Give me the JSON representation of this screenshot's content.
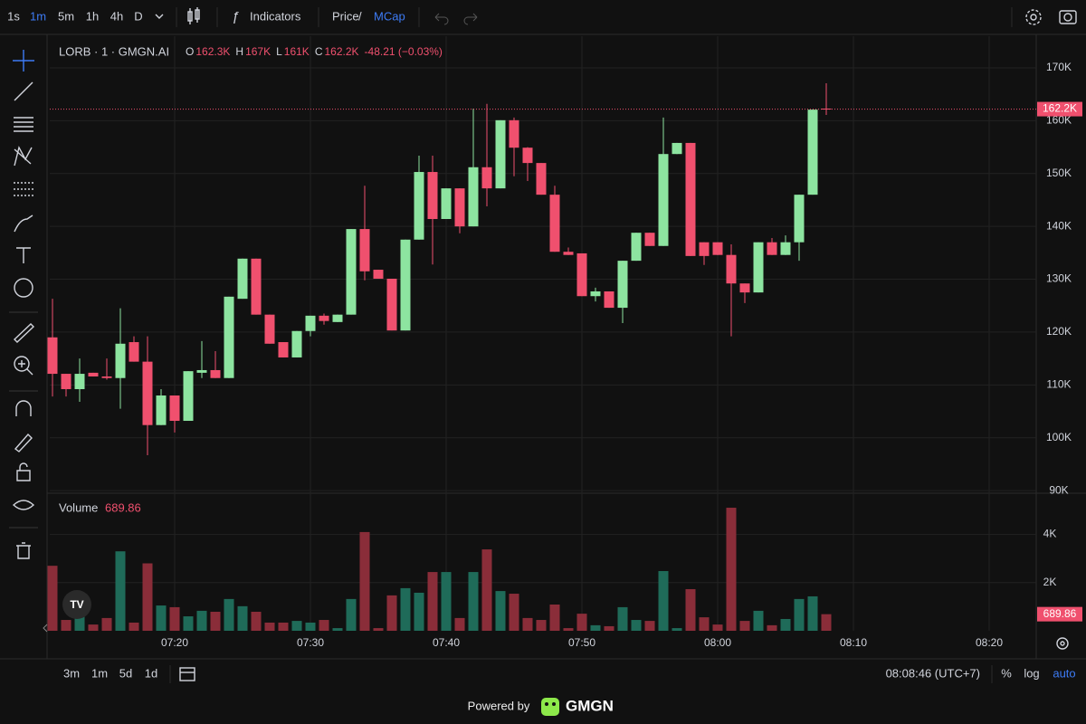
{
  "toolbar": {
    "intervals": [
      "1s",
      "1m",
      "5m",
      "1h",
      "4h",
      "D"
    ],
    "indicators": "Indicators",
    "price": "Price",
    "slash": "/",
    "mcap": "MCap"
  },
  "bottom_bar": {
    "ranges": [
      "3m",
      "1m",
      "5d",
      "1d"
    ],
    "clock": "08:08:46 (UTC+7)",
    "percent": "%",
    "log": "log",
    "auto": "auto"
  },
  "footer": {
    "powered": "Powered by",
    "brand": "GMGN"
  },
  "chart_data": {
    "type": "candlestick",
    "title": "LORB · 1 · GMGN.AI",
    "legend": [
      {
        "key": "O",
        "value": "162.3K"
      },
      {
        "key": "H",
        "value": "167K"
      },
      {
        "key": "L",
        "value": "161K"
      },
      {
        "key": "C",
        "value": "162.2K"
      }
    ],
    "change": "-48.21 (−0.03%)",
    "up_color": "#8de4a0",
    "down_color": "#f0506e",
    "categories": [
      null,
      null,
      null,
      null,
      null,
      null,
      null,
      null,
      null,
      "07:20",
      null,
      null,
      null,
      null,
      null,
      null,
      null,
      null,
      null,
      "07:30",
      null,
      null,
      null,
      null,
      null,
      null,
      null,
      null,
      null,
      "07:40",
      null,
      null,
      null,
      null,
      null,
      null,
      null,
      null,
      null,
      "07:50",
      null,
      null,
      null,
      null,
      null,
      null,
      null,
      null,
      null,
      "08:00",
      null,
      null,
      null,
      null,
      null,
      null,
      null,
      null,
      null,
      "08:10",
      null,
      null,
      null,
      null,
      null,
      null,
      null,
      null,
      null,
      "08:20",
      null,
      null
    ],
    "open": [
      119000,
      112100,
      109200,
      112300,
      111600,
      111300,
      118100,
      114400,
      102400,
      108000,
      103200,
      112300,
      112800,
      111300,
      126300,
      133900,
      123300,
      118100,
      115200,
      120200,
      123100,
      121900,
      123300,
      139500,
      131800,
      130100,
      120300,
      137500,
      150300,
      141400,
      147200,
      140000,
      151200,
      147200,
      160100,
      154900,
      152000,
      146000,
      135200,
      134900,
      126800,
      127700,
      124600,
      133500,
      138800,
      136300,
      153700,
      155800,
      137000,
      137000,
      134600,
      129200,
      127500,
      137000,
      134600,
      137000,
      146000,
      162300,
      null,
      null,
      null,
      null,
      null,
      null,
      null,
      null,
      null,
      null,
      null,
      null,
      null,
      null
    ],
    "high": [
      126300,
      112100,
      115000,
      112300,
      115000,
      124500,
      119200,
      119200,
      109200,
      108000,
      112600,
      118300,
      116400,
      126700,
      133900,
      133900,
      123300,
      118100,
      120200,
      123100,
      123500,
      123300,
      139500,
      147700,
      131800,
      130100,
      137500,
      153400,
      153400,
      147200,
      147200,
      162300,
      163200,
      160100,
      160600,
      155000,
      152000,
      147700,
      136000,
      134900,
      128400,
      127700,
      133500,
      138800,
      138800,
      160600,
      155800,
      155800,
      137000,
      137000,
      136600,
      129200,
      137000,
      137800,
      138300,
      146000,
      162100,
      167100,
      null,
      null,
      null,
      null,
      null,
      null,
      null,
      null,
      null,
      null,
      null,
      null,
      null,
      null
    ],
    "low": [
      107800,
      107800,
      106800,
      111600,
      111000,
      105500,
      114400,
      96700,
      102400,
      101000,
      103200,
      111300,
      111300,
      111300,
      126300,
      123300,
      117800,
      115200,
      115200,
      119200,
      121400,
      121900,
      123300,
      129800,
      130100,
      120300,
      120300,
      137500,
      132800,
      141400,
      138700,
      140000,
      143800,
      147200,
      149500,
      148600,
      146000,
      135200,
      134600,
      126800,
      125800,
      124600,
      121700,
      133500,
      136300,
      136300,
      153700,
      134400,
      132700,
      134600,
      119200,
      125500,
      127500,
      134600,
      134600,
      133500,
      146000,
      161100,
      null,
      null,
      null,
      null,
      null,
      null,
      null,
      null,
      null,
      null,
      null,
      null,
      null,
      null
    ],
    "close": [
      112100,
      109200,
      112100,
      111600,
      111300,
      117800,
      114400,
      102400,
      108000,
      103200,
      112600,
      112800,
      111300,
      126700,
      133900,
      123300,
      117800,
      115200,
      120200,
      123100,
      122100,
      123300,
      139500,
      131500,
      130100,
      120300,
      137500,
      150300,
      141400,
      147200,
      140000,
      151200,
      147200,
      160100,
      154900,
      152000,
      146000,
      135200,
      134600,
      126800,
      127700,
      124600,
      133500,
      138800,
      136300,
      153700,
      155800,
      134400,
      134400,
      134600,
      129200,
      127500,
      137000,
      134600,
      137000,
      146000,
      162100,
      162200,
      null,
      null,
      null,
      null,
      null,
      null,
      null,
      null,
      null,
      null,
      null,
      null,
      null,
      null
    ],
    "ylim": [
      89500,
      176000
    ],
    "yticks": [
      {
        "value": 90000,
        "label": "90K"
      },
      {
        "value": 100000,
        "label": "100K"
      },
      {
        "value": 110000,
        "label": "110K"
      },
      {
        "value": 120000,
        "label": "120K"
      },
      {
        "value": 130000,
        "label": "130K"
      },
      {
        "value": 140000,
        "label": "140K"
      },
      {
        "value": 150000,
        "label": "150K"
      },
      {
        "value": 160000,
        "label": "160K"
      },
      {
        "value": 170000,
        "label": "170K"
      }
    ],
    "volume": {
      "name": "Volume",
      "last_label": "689.86",
      "up_color": "#1f6b59",
      "down_color": "#8a2d39",
      "values": [
        2700,
        450,
        640,
        260,
        530,
        3300,
        340,
        2800,
        1050,
        980,
        600,
        830,
        790,
        1320,
        1020,
        790,
        340,
        340,
        410,
        340,
        450,
        110,
        1320,
        4100,
        110,
        1470,
        1770,
        1580,
        2440,
        2440,
        530,
        2440,
        3380,
        1650,
        1540,
        530,
        450,
        1090,
        110,
        710,
        230,
        190,
        980,
        450,
        410,
        2480,
        110,
        1730,
        560,
        260,
        5110,
        410,
        830,
        230,
        490,
        1320,
        1430,
        689.86,
        null,
        null,
        null,
        null,
        null,
        null,
        null,
        null,
        null,
        null,
        null,
        null,
        null,
        null
      ],
      "ylim": [
        0,
        5600
      ],
      "yticks": [
        {
          "value": 2000,
          "label": "2K"
        },
        {
          "value": 4000,
          "label": "4K"
        }
      ]
    },
    "grid": true
  }
}
